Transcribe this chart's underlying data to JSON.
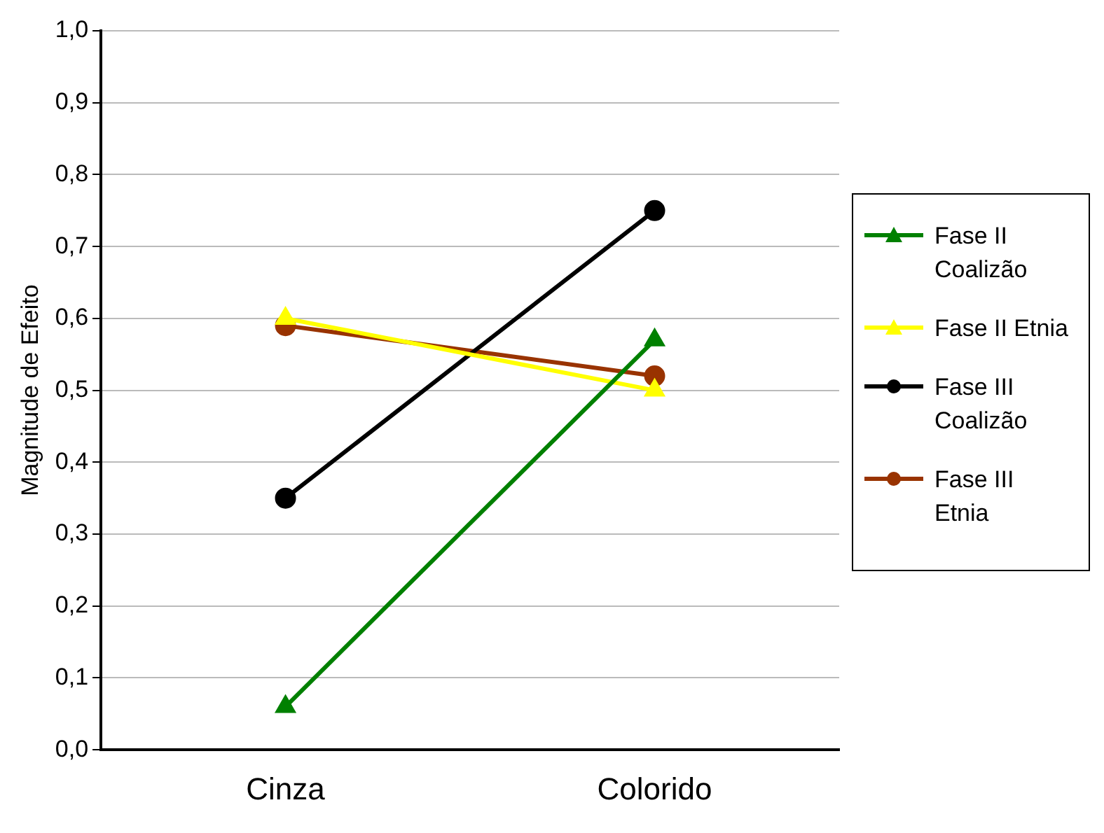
{
  "chart_data": {
    "type": "line",
    "ylabel": "Magnitude de Efeito",
    "categories": [
      "Cinza",
      "Colorido"
    ],
    "series": [
      {
        "name": "Fase II Coalizão",
        "color": "#008000",
        "values": [
          0.06,
          0.57
        ],
        "marker": "triangle"
      },
      {
        "name": "Fase II Etnia",
        "color": "#ffff00",
        "values": [
          0.6,
          0.5
        ],
        "marker": "triangle"
      },
      {
        "name": "Fase III Coalizão",
        "color": "#000000",
        "values": [
          0.35,
          0.75
        ],
        "marker": "circle"
      },
      {
        "name": "Fase III Etnia",
        "color": "#993300",
        "values": [
          0.59,
          0.52
        ],
        "marker": "circle"
      }
    ],
    "ylim": [
      0,
      1
    ],
    "yticks": [
      {
        "value": 0,
        "label": "0,0"
      },
      {
        "value": 0.1,
        "label": "0,1"
      },
      {
        "value": 0.2,
        "label": "0,2"
      },
      {
        "value": 0.3,
        "label": "0,3"
      },
      {
        "value": 0.4,
        "label": "0,4"
      },
      {
        "value": 0.5,
        "label": "0,5"
      },
      {
        "value": 0.6,
        "label": "0,6"
      },
      {
        "value": 0.7,
        "label": "0,7"
      },
      {
        "value": 0.8,
        "label": "0,8"
      },
      {
        "value": 0.9,
        "label": "0,9"
      },
      {
        "value": 1,
        "label": "1,0"
      }
    ],
    "grid": "y",
    "legend": "right",
    "line_style": "solid"
  }
}
